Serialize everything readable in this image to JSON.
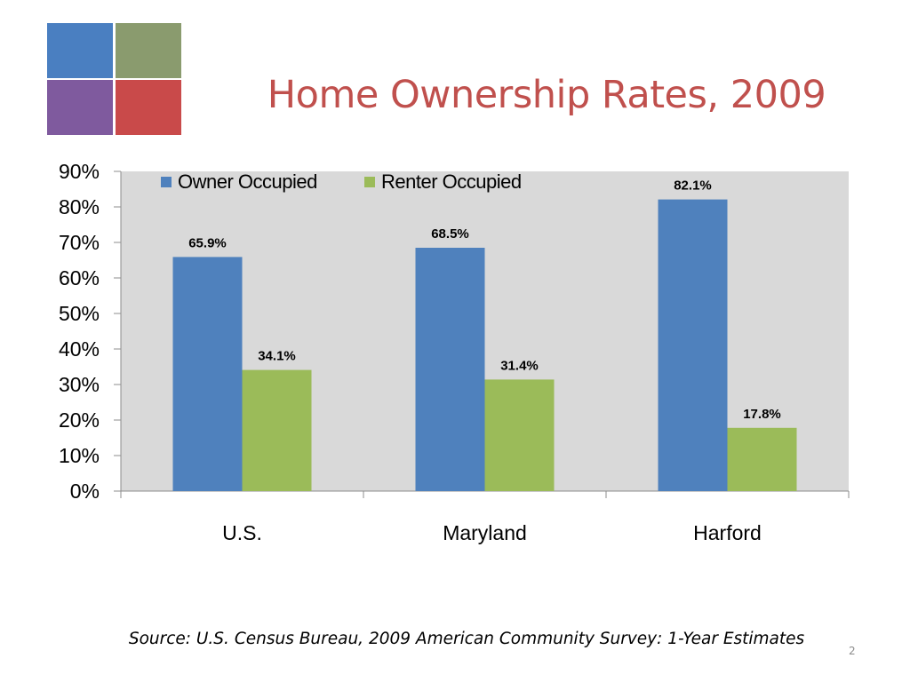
{
  "slide": {
    "title": "Home Ownership Rates, 2009",
    "source": "Source: U.S. Census Bureau, 2009 American Community Survey: 1-Year Estimates",
    "page_number": "2"
  },
  "colors": {
    "title": "#c0504d",
    "owner": "#4f81bd",
    "renter": "#9bbb59",
    "plot_background": "#d9d9d9",
    "logo": [
      "#4a7fc1",
      "#8a9b6e",
      "#7f5a9e",
      "#c94a4a"
    ]
  },
  "chart_data": {
    "type": "bar",
    "categories": [
      "U.S.",
      "Maryland",
      "Harford"
    ],
    "series": [
      {
        "name": "Owner Occupied",
        "values": [
          65.9,
          68.5,
          82.1
        ],
        "labels": [
          "65.9%",
          "68.5%",
          "82.1%"
        ]
      },
      {
        "name": "Renter Occupied",
        "values": [
          34.1,
          31.4,
          17.8
        ],
        "labels": [
          "34.1%",
          "31.4%",
          "17.8%"
        ]
      }
    ],
    "ylim": [
      0,
      90
    ],
    "yticks": [
      "0%",
      "10%",
      "20%",
      "30%",
      "40%",
      "50%",
      "60%",
      "70%",
      "80%",
      "90%"
    ],
    "legend": "top-left",
    "grid": false
  }
}
